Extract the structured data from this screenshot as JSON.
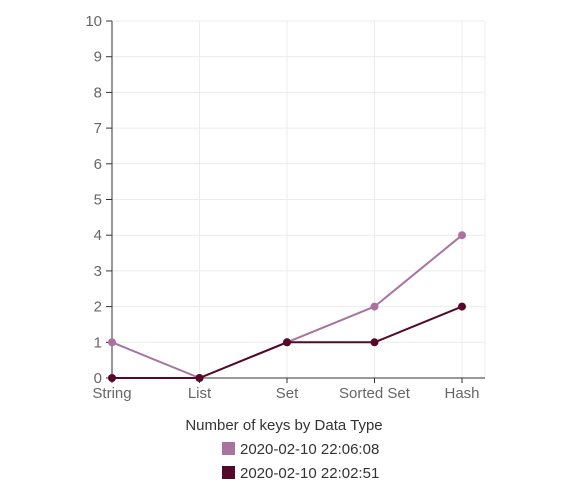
{
  "chart_data": {
    "type": "line",
    "title": "Number of keys by Data Type",
    "categories": [
      "String",
      "List",
      "Set",
      "Sorted Set",
      "Hash"
    ],
    "ylim": [
      0,
      10
    ],
    "yticks": [
      "0",
      "1",
      "2",
      "3",
      "4",
      "5",
      "6",
      "7",
      "8",
      "9",
      "10"
    ],
    "grid": true,
    "legend_position": "bottom",
    "series": [
      {
        "name": "2020-02-10 22:06:08",
        "color": "#a8749f",
        "values": [
          1,
          0,
          1,
          2,
          4
        ]
      },
      {
        "name": "2020-02-10 22:02:51",
        "color": "#55082a",
        "values": [
          0,
          0,
          1,
          1,
          2
        ]
      }
    ]
  }
}
